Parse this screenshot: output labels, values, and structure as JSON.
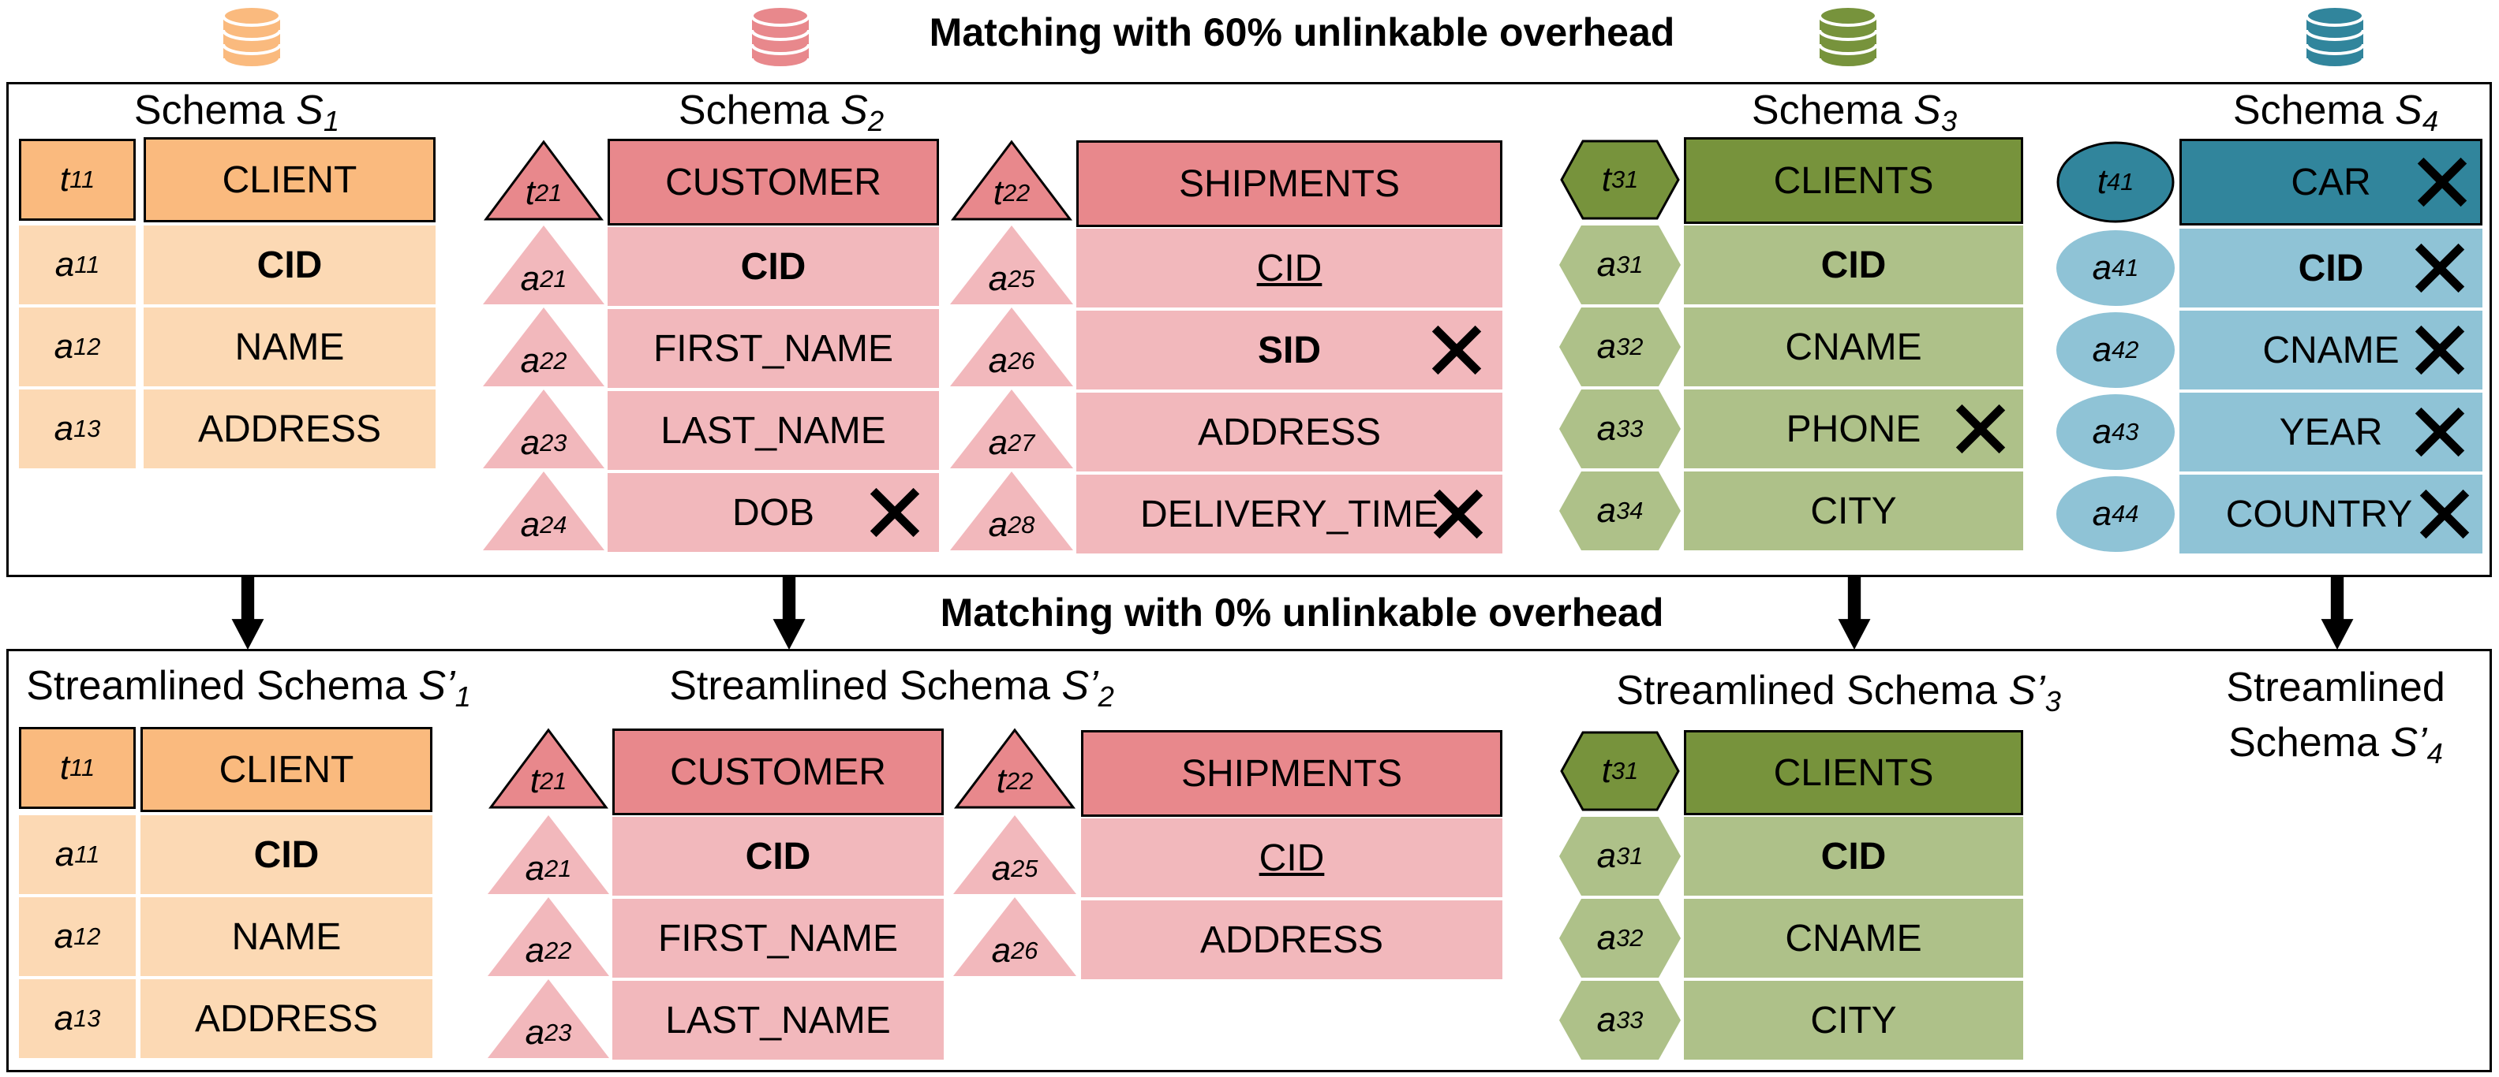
{
  "top_title": "Matching with 60% unlinkable overhead",
  "bottom_title": "Matching with 0% unlinkable overhead",
  "colors": {
    "orange_header": "#FABA7E",
    "orange_row": "#FCD9B4",
    "pink_header": "#E8888C",
    "pink_row": "#F2B8BC",
    "green_header": "#77933C",
    "green_row": "#AEC189",
    "blue_header": "#31859C",
    "blue_row": "#8FC3D6"
  },
  "icons": [
    "database-icon-orange",
    "database-icon-pink",
    "database-icon-green",
    "database-icon-blue",
    "cross-icon",
    "down-arrow-icon"
  ],
  "top": {
    "s1": {
      "title": "Schema S1",
      "header_label": "t11",
      "header": "CLIENT",
      "rows": [
        {
          "label": "a11",
          "text": "CID"
        },
        {
          "label": "a12",
          "text": "NAME"
        },
        {
          "label": "a13",
          "text": "ADDRESS"
        }
      ]
    },
    "s2": {
      "title": "Schema S2",
      "customer": {
        "header_label": "t21",
        "header": "CUSTOMER",
        "rows": [
          {
            "label": "a21",
            "text": "CID"
          },
          {
            "label": "a22",
            "text": "FIRST_NAME"
          },
          {
            "label": "a23",
            "text": "LAST_NAME"
          },
          {
            "label": "a24",
            "text": "DOB"
          }
        ]
      },
      "shipments": {
        "header_label": "t22",
        "header": "SHIPMENTS",
        "rows": [
          {
            "label": "a25",
            "text": "CID"
          },
          {
            "label": "a26",
            "text": "SID"
          },
          {
            "label": "a27",
            "text": "ADDRESS"
          },
          {
            "label": "a28",
            "text": "DELIVERY_TIME"
          }
        ]
      }
    },
    "s3": {
      "title": "Schema S3",
      "header_label": "t31",
      "header": "CLIENTS",
      "rows": [
        {
          "label": "a31",
          "text": "CID"
        },
        {
          "label": "a32",
          "text": "CNAME"
        },
        {
          "label": "a33",
          "text": "PHONE"
        },
        {
          "label": "a34",
          "text": "CITY"
        }
      ]
    },
    "s4": {
      "title": "Schema S4",
      "header_label": "t41",
      "header": "CAR",
      "rows": [
        {
          "label": "a41",
          "text": "CID"
        },
        {
          "label": "a42",
          "text": "CNAME"
        },
        {
          "label": "a43",
          "text": "YEAR"
        },
        {
          "label": "a44",
          "text": "COUNTRY"
        }
      ]
    }
  },
  "bottom": {
    "s1": {
      "title": "Streamlined Schema S’1",
      "header_label": "t11",
      "header": "CLIENT",
      "rows": [
        {
          "label": "a11",
          "text": "CID"
        },
        {
          "label": "a12",
          "text": "NAME"
        },
        {
          "label": "a13",
          "text": "ADDRESS"
        }
      ]
    },
    "s2": {
      "title": "Streamlined Schema S’2",
      "customer": {
        "header_label": "t21",
        "header": "CUSTOMER",
        "rows": [
          {
            "label": "a21",
            "text": "CID"
          },
          {
            "label": "a22",
            "text": "FIRST_NAME"
          },
          {
            "label": "a23",
            "text": "LAST_NAME"
          }
        ]
      },
      "shipments": {
        "header_label": "t22",
        "header": "SHIPMENTS",
        "rows": [
          {
            "label": "a25",
            "text": "CID"
          },
          {
            "label": "a26",
            "text": "ADDRESS"
          }
        ]
      }
    },
    "s3": {
      "title": "Streamlined Schema S’3",
      "header_label": "t31",
      "header": "CLIENTS",
      "rows": [
        {
          "label": "a31",
          "text": "CID"
        },
        {
          "label": "a32",
          "text": "CNAME"
        },
        {
          "label": "a33",
          "text": "CITY"
        }
      ]
    },
    "s4": {
      "title_line1": "Streamlined",
      "title_line2": "Schema S’4"
    }
  }
}
